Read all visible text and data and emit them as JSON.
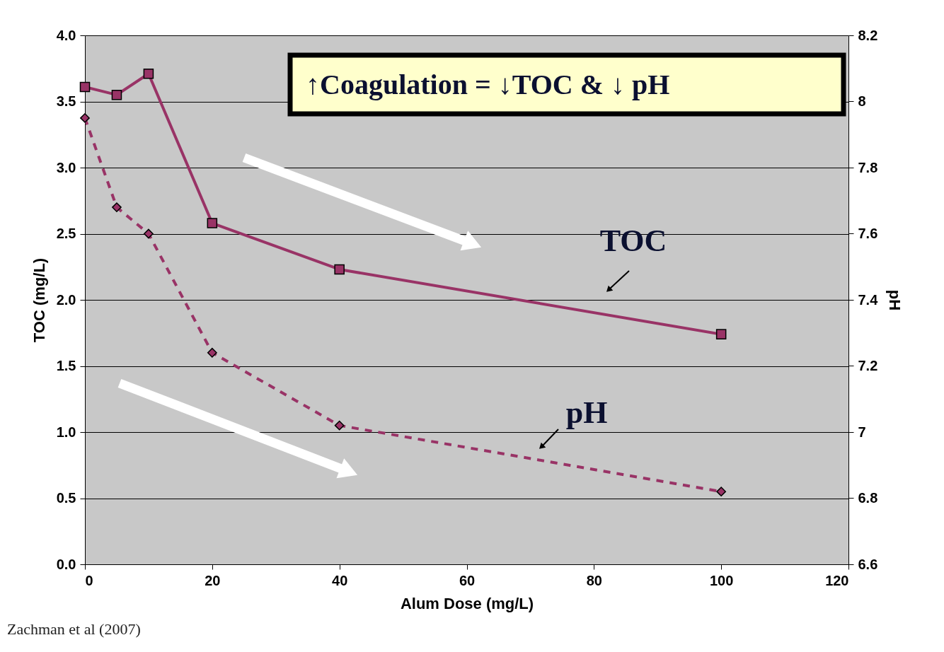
{
  "chart_data": {
    "type": "line",
    "xlabel": "Alum Dose (mg/L)",
    "ylabel": "TOC (mg/L)",
    "y2label": "pH",
    "x": [
      0,
      5,
      10,
      20,
      40,
      100
    ],
    "series": [
      {
        "name": "TOC",
        "color": "#993366",
        "values": [
          3.61,
          3.55,
          3.71,
          2.58,
          2.23,
          1.74
        ],
        "marker": "square",
        "line_style": "solid"
      },
      {
        "name": "pH",
        "color": "#993366",
        "values": [
          7.95,
          7.68,
          7.6,
          7.24,
          7.02,
          6.82
        ],
        "marker": "diamond",
        "line_style": "dashed",
        "axis": "y2"
      }
    ],
    "xlim": [
      0,
      120
    ],
    "xticks": [
      0,
      20,
      40,
      60,
      80,
      100,
      120
    ],
    "ylim": [
      0,
      4
    ],
    "yticks": [
      {
        "value": 0,
        "label": "0.0"
      },
      {
        "value": 0.5,
        "label": "0.5"
      },
      {
        "value": 1,
        "label": "1.0"
      },
      {
        "value": 1.5,
        "label": "1.5"
      },
      {
        "value": 2,
        "label": "2.0"
      },
      {
        "value": 2.5,
        "label": "2.5"
      },
      {
        "value": 3,
        "label": "3.0"
      },
      {
        "value": 3.5,
        "label": "3.5"
      },
      {
        "value": 4,
        "label": "4.0"
      }
    ],
    "y2lim": [
      6.6,
      8.2
    ],
    "y2ticks": [
      6.6,
      6.8,
      7,
      7.2,
      7.4,
      7.6,
      7.8,
      8,
      8.2
    ],
    "grid": "y",
    "legend": false,
    "annotations": [
      "↑Coagulation =  ↓TOC & ↓ pH",
      "Zachman et al (2007)"
    ]
  }
}
